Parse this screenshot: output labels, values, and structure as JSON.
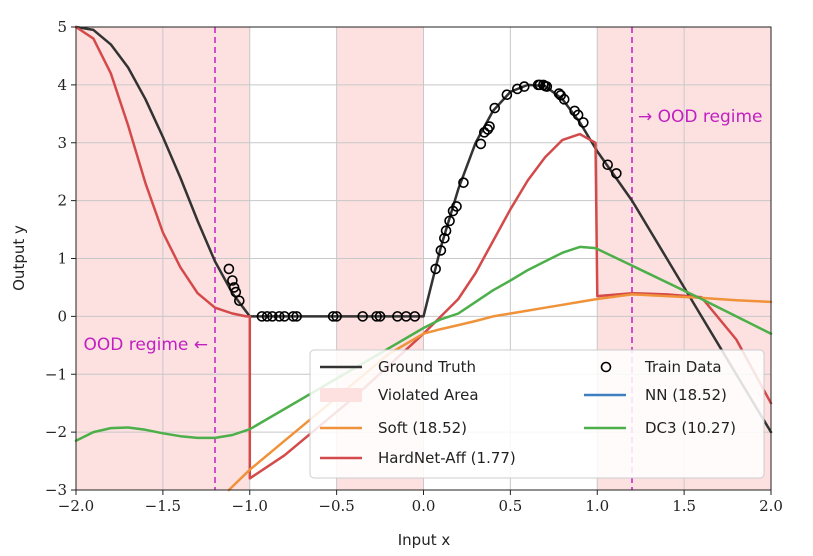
{
  "chart_data": {
    "type": "line",
    "xlabel": "Input x",
    "ylabel": "Output y",
    "xlim": [
      -2.0,
      2.0
    ],
    "ylim": [
      -3,
      5
    ],
    "xticks": [
      -2.0,
      -1.5,
      -1.0,
      -0.5,
      0.0,
      0.5,
      1.0,
      1.5,
      2.0
    ],
    "xtick_labels": [
      "−2.0",
      "−1.5",
      "−1.0",
      "−0.5",
      "0.0",
      "0.5",
      "1.0",
      "1.5",
      "2.0"
    ],
    "yticks": [
      -3,
      -2,
      -1,
      0,
      1,
      2,
      3,
      4,
      5
    ],
    "ytick_labels": [
      "−3",
      "−2",
      "−1",
      "0",
      "1",
      "2",
      "3",
      "4",
      "5"
    ],
    "grid": true,
    "violated_regions": [
      [
        -2.0,
        -1.0
      ],
      [
        -0.5,
        0.0
      ],
      [
        1.0,
        2.0
      ]
    ],
    "ood_boundaries": [
      -1.2,
      1.2
    ],
    "annotations": [
      {
        "text": "→ OOD regime",
        "x": 1.2,
        "y": 3.45
      },
      {
        "text": "OOD regime ←",
        "x": -1.2,
        "y": -0.5
      }
    ],
    "series": [
      {
        "name": "Ground Truth",
        "color": "#333333",
        "x": [
          -2.0,
          -1.9,
          -1.8,
          -1.7,
          -1.6,
          -1.5,
          -1.4,
          -1.3,
          -1.2,
          -1.1,
          -1.0,
          -0.5,
          0.0,
          0.05,
          0.1,
          0.2,
          0.3,
          0.4,
          0.5,
          0.6,
          0.7,
          0.8,
          0.9,
          1.0,
          1.2,
          1.4,
          1.6,
          1.8,
          2.0
        ],
        "y": [
          5.0,
          4.95,
          4.7,
          4.3,
          3.75,
          3.1,
          2.4,
          1.65,
          0.95,
          0.4,
          0.0,
          0.0,
          0.0,
          0.6,
          1.2,
          2.2,
          3.0,
          3.55,
          3.88,
          4.0,
          3.98,
          3.75,
          3.35,
          2.85,
          2.0,
          1.0,
          0.0,
          -1.0,
          -2.0
        ]
      },
      {
        "name": "HardNet-Aff (1.77)",
        "color": "#d44a4a",
        "x": [
          -2.0,
          -1.9,
          -1.8,
          -1.7,
          -1.6,
          -1.5,
          -1.4,
          -1.3,
          -1.2,
          -1.1,
          -1.02,
          -1.0,
          -1.0,
          -0.8,
          -0.6,
          -0.4,
          -0.2,
          0.0,
          0.1,
          0.2,
          0.3,
          0.4,
          0.5,
          0.6,
          0.7,
          0.8,
          0.9,
          0.99,
          1.0,
          1.2,
          1.4,
          1.6,
          1.8,
          2.0
        ],
        "y": [
          5.0,
          4.8,
          4.2,
          3.3,
          2.3,
          1.45,
          0.85,
          0.4,
          0.15,
          0.05,
          0.0,
          0.0,
          -2.8,
          -2.4,
          -1.9,
          -1.4,
          -0.85,
          -0.3,
          0.0,
          0.3,
          0.75,
          1.3,
          1.85,
          2.35,
          2.75,
          3.05,
          3.15,
          3.0,
          0.35,
          0.4,
          0.38,
          0.33,
          -0.4,
          -1.5
        ]
      },
      {
        "name": "Soft (18.52)",
        "color": "#f0923a",
        "x": [
          -1.12,
          -1.0,
          -0.8,
          -0.6,
          -0.4,
          -0.2,
          0.0,
          0.0,
          0.1,
          0.2,
          0.3,
          0.4,
          0.5,
          0.6,
          0.7,
          0.8,
          0.9,
          1.0,
          1.2,
          1.4,
          1.6,
          1.8,
          2.0
        ],
        "y": [
          -3.0,
          -2.65,
          -2.15,
          -1.65,
          -1.15,
          -0.65,
          -0.3,
          -0.3,
          -0.22,
          -0.15,
          -0.08,
          0.0,
          0.05,
          0.1,
          0.15,
          0.2,
          0.25,
          0.3,
          0.38,
          0.35,
          0.32,
          0.28,
          0.25
        ]
      },
      {
        "name": "NN (18.52)",
        "color": "#3d7fc1",
        "x": [],
        "y": []
      },
      {
        "name": "DC3 (10.27)",
        "color": "#4caf4a",
        "x": [
          -2.0,
          -1.9,
          -1.8,
          -1.7,
          -1.6,
          -1.5,
          -1.4,
          -1.3,
          -1.2,
          -1.1,
          -1.0,
          0.0,
          0.1,
          0.2,
          0.3,
          0.4,
          0.5,
          0.6,
          0.7,
          0.8,
          0.9,
          0.99,
          1.6,
          1.8,
          2.0
        ],
        "y": [
          -2.15,
          -2.0,
          -1.93,
          -1.92,
          -1.96,
          -2.02,
          -2.07,
          -2.1,
          -2.1,
          -2.05,
          -1.95,
          -0.2,
          -0.05,
          0.05,
          0.25,
          0.45,
          0.62,
          0.8,
          0.95,
          1.1,
          1.2,
          1.18,
          0.3,
          0.0,
          -0.3
        ]
      }
    ],
    "train_data": {
      "name": "Train Data",
      "x": [
        -1.12,
        -1.1,
        -1.09,
        -1.08,
        -1.06,
        -0.93,
        -0.9,
        -0.87,
        -0.83,
        -0.8,
        -0.75,
        -0.73,
        -0.52,
        -0.5,
        -0.35,
        -0.27,
        -0.25,
        -0.15,
        -0.1,
        -0.05,
        0.07,
        0.1,
        0.12,
        0.13,
        0.15,
        0.17,
        0.19,
        0.23,
        0.33,
        0.35,
        0.37,
        0.38,
        0.41,
        0.48,
        0.54,
        0.58,
        0.66,
        0.67,
        0.69,
        0.7,
        0.71,
        0.78,
        0.79,
        0.81,
        0.87,
        0.89,
        0.92,
        1.06,
        1.11
      ],
      "y": [
        0.82,
        0.62,
        0.5,
        0.42,
        0.27,
        0.0,
        0.0,
        0.0,
        0.0,
        0.0,
        0.0,
        0.0,
        0.0,
        0.0,
        0.0,
        0.0,
        0.0,
        0.0,
        0.0,
        0.0,
        0.82,
        1.14,
        1.35,
        1.48,
        1.65,
        1.82,
        1.9,
        2.31,
        2.98,
        3.18,
        3.23,
        3.28,
        3.6,
        3.83,
        3.93,
        3.97,
        4.0,
        4.0,
        4.0,
        3.98,
        3.97,
        3.85,
        3.82,
        3.75,
        3.55,
        3.48,
        3.35,
        2.62,
        2.47
      ]
    },
    "legend": {
      "position": "lower-right",
      "entries": [
        "Ground Truth",
        "Train Data",
        "Violated Area",
        "NN (18.52)",
        "Soft (18.52)",
        "DC3 (10.27)",
        "HardNet-Aff (1.77)"
      ]
    }
  },
  "colors": {
    "violated": "#fde0e0",
    "ood_line": "#c21fc2",
    "grid": "#c8c8c8",
    "axis": "#222222"
  }
}
